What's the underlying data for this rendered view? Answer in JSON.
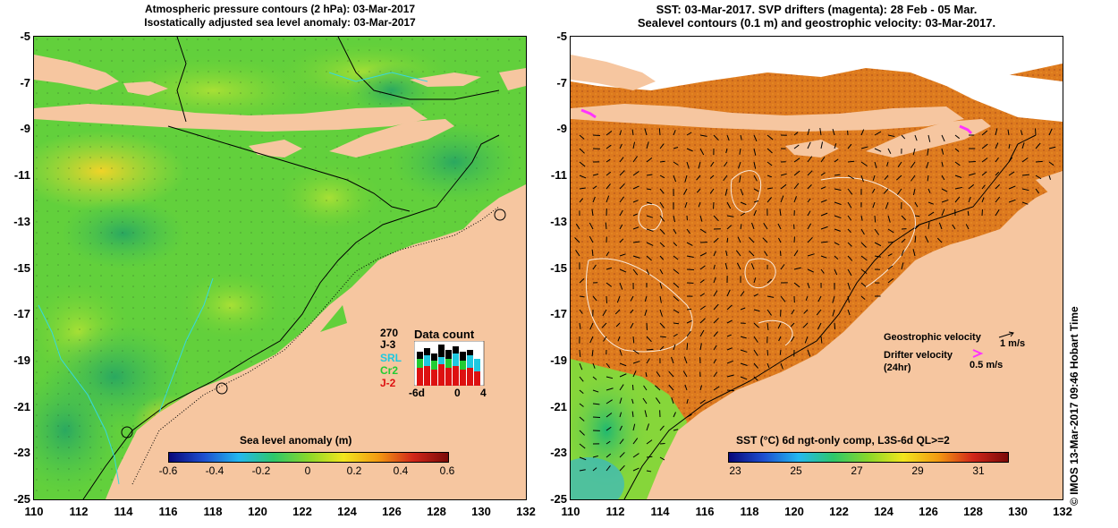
{
  "left_panel": {
    "title_line1": "Atmospheric pressure contours (2 hPa): 03-Mar-2017",
    "title_line2": "Isostatically adjusted sea level anomaly: 03-Mar-2017",
    "colorbar_title": "Sea level anomaly (m)",
    "colorbar_ticks": [
      "-0.6",
      "-0.4",
      "-0.2",
      "0",
      "0.2",
      "0.4",
      "0.6"
    ],
    "colorbar_colors": [
      "#08087a",
      "#1e4fd0",
      "#23b8f0",
      "#2ec86a",
      "#8ad82a",
      "#f2e61e",
      "#f39a12",
      "#d2261a",
      "#7a0a08"
    ],
    "data_count": {
      "title": "Data count",
      "max_label": "270",
      "satellites": [
        {
          "name": "J-3",
          "color": "#000000"
        },
        {
          "name": "SRL",
          "color": "#1ec8e0"
        },
        {
          "name": "Cr2",
          "color": "#22cc33"
        },
        {
          "name": "J-2",
          "color": "#dd1111"
        }
      ],
      "x_ticks": [
        "-6d",
        "0",
        "4"
      ]
    }
  },
  "right_panel": {
    "title_line1": "SST: 03-Mar-2017. SVP drifters (magenta): 28 Feb - 05 Mar.",
    "title_line2": "Sealevel contours (0.1 m) and geostrophic velocity: 03-Mar-2017.",
    "geostrophic_label": "Geostrophic velocity",
    "geostrophic_scale": "1 m/s",
    "drifter_label": "Drifter velocity",
    "drifter_label2": "(24hr)",
    "drifter_scale": "0.5 m/s",
    "colorbar_title": "SST (°C) 6d ngt-only comp, L3S-6d QL>=2",
    "colorbar_ticks": [
      "23",
      "25",
      "27",
      "29",
      "31"
    ],
    "colorbar_colors": [
      "#08087a",
      "#1e4fd0",
      "#23b8f0",
      "#2ec86a",
      "#8ad82a",
      "#f2e61e",
      "#f39a12",
      "#d2261a",
      "#7a0a08"
    ]
  },
  "axes": {
    "y_ticks": [
      "-5",
      "-7",
      "-9",
      "-11",
      "-13",
      "-15",
      "-17",
      "-19",
      "-21",
      "-23",
      "-25"
    ],
    "x_ticks": [
      "110",
      "112",
      "114",
      "116",
      "118",
      "120",
      "122",
      "124",
      "126",
      "128",
      "130",
      "132"
    ]
  },
  "credit": "© IMOS 13-Mar-2017 09:46 Hobart Time",
  "colors": {
    "land": "#f6c6a0",
    "ocean_green": "#5cd23a",
    "ocean_yellow": "#c8e040",
    "sst_orange": "#dd7a1e"
  }
}
